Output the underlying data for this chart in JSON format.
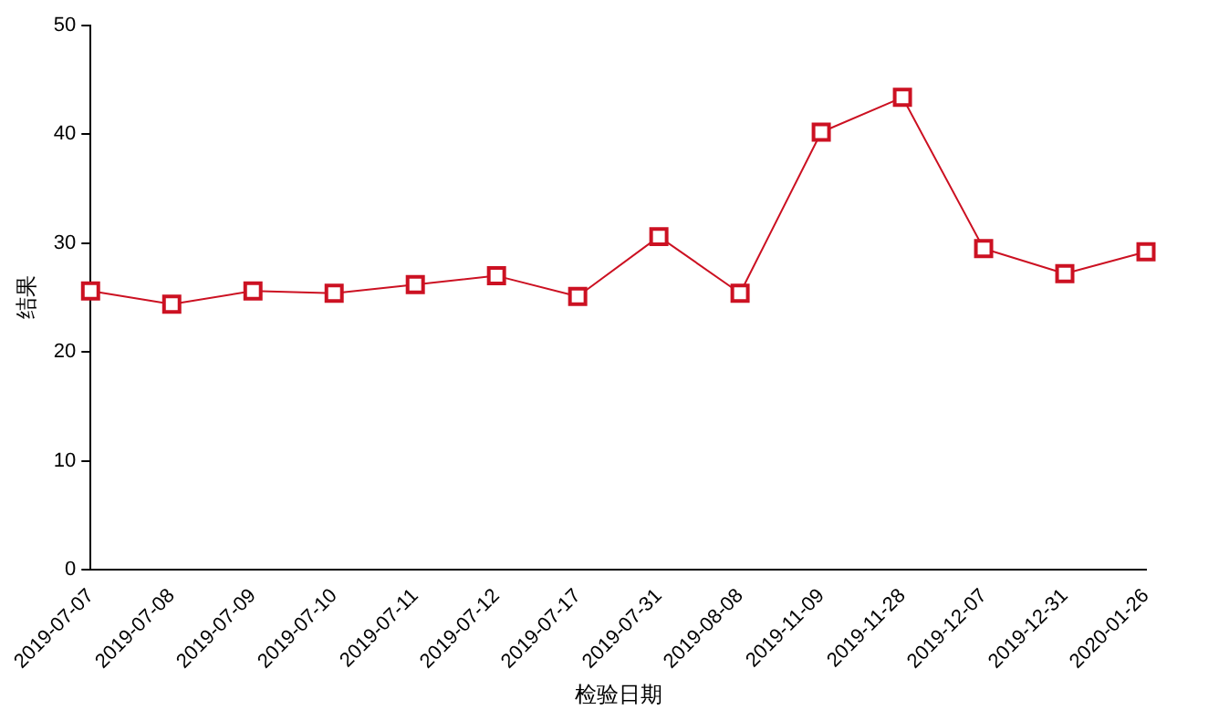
{
  "chart_data": {
    "type": "line",
    "xlabel": "检验日期",
    "ylabel": "结果",
    "categories": [
      "2019-07-07",
      "2019-07-08",
      "2019-07-09",
      "2019-07-10",
      "2019-07-11",
      "2019-07-12",
      "2019-07-17",
      "2019-07-31",
      "2019-08-08",
      "2019-11-09",
      "2019-11-28",
      "2019-12-07",
      "2019-12-31",
      "2020-01-26"
    ],
    "series": [
      {
        "color": "#cc1122",
        "values": [
          25.6,
          24.4,
          25.6,
          25.4,
          26.2,
          27.0,
          25.1,
          30.6,
          25.4,
          40.2,
          43.4,
          29.5,
          27.2,
          29.2
        ]
      }
    ],
    "ylim": [
      0,
      50
    ],
    "yticks": [
      0,
      10,
      20,
      30,
      40,
      50
    ],
    "grid": false,
    "legend": false,
    "marker": "square",
    "line_style": "solid"
  }
}
